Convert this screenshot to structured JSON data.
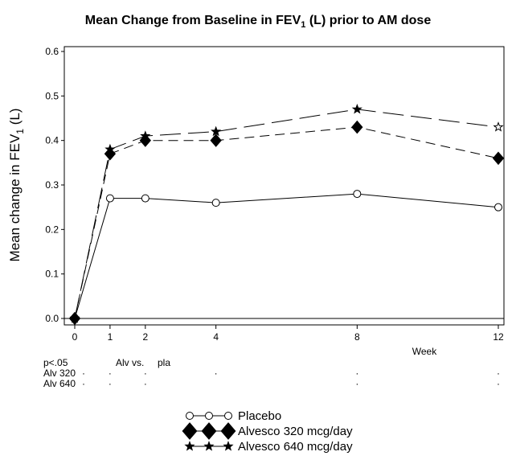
{
  "chart_data": {
    "type": "line",
    "title_prefix": "Mean Change from Baseline in FEV",
    "title_sub": "1",
    "title_suffix": " (L) prior to AM dose",
    "ylabel_prefix": "Mean change in FEV",
    "ylabel_sub": "1",
    "ylabel_suffix": " (L)",
    "xlabel": "Week",
    "x": [
      0,
      1,
      2,
      4,
      8,
      12
    ],
    "xticks": [
      "0",
      "1",
      "2",
      "4",
      "8",
      "12"
    ],
    "yticks": [
      "0.0",
      "0.1",
      "0.2",
      "0.3",
      "0.4",
      "0.5",
      "0.6"
    ],
    "ylim": [
      0,
      0.6
    ],
    "xlim": [
      0,
      12
    ],
    "grid": false,
    "legend_position": "bottom-center",
    "series": [
      {
        "name": "Placebo",
        "marker": "circle",
        "line": "solid",
        "values": [
          0.0,
          0.27,
          0.27,
          0.26,
          0.28,
          0.25
        ]
      },
      {
        "name": "Alvesco 320 mcg/day",
        "marker": "diamond",
        "line": "short-dash",
        "values": [
          0.0,
          0.37,
          0.4,
          0.4,
          0.43,
          0.36
        ]
      },
      {
        "name": "Alvesco 640 mcg/day",
        "marker": "star",
        "line": "long-dash",
        "values": [
          0.0,
          0.38,
          0.41,
          0.42,
          0.47,
          0.43
        ],
        "open_marker_index": 5
      }
    ],
    "significance": {
      "header": "p<.05",
      "note_left": "Alv vs.",
      "note_right": "pla",
      "rows": [
        {
          "label": "Alv 320",
          "weeks": [
            1,
            2,
            4,
            8,
            12
          ],
          "mark": "·"
        },
        {
          "label": "Alv 640",
          "weeks": [
            1,
            2,
            8,
            12
          ],
          "mark": "·"
        }
      ]
    }
  }
}
